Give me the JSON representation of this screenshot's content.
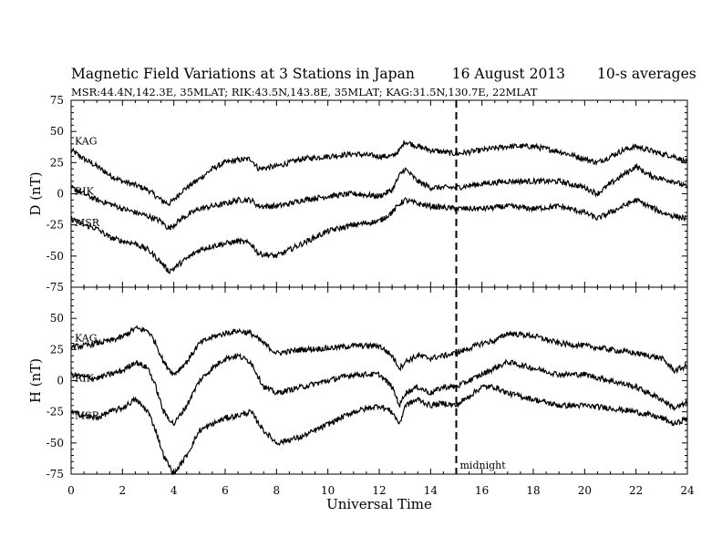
{
  "chart_data": {
    "type": "line",
    "title": "Magnetic Field Variations at 3 Stations in Japan",
    "date": "16  August  2013",
    "averaging": "10-s averages",
    "subtitle": "MSR:44.4N,142.3E, 35MLAT;  RIK:43.5N,143.8E, 35MLAT;  KAG:31.5N,130.7E, 22MLAT",
    "xlabel": "Universal Time",
    "xlim": [
      0,
      24
    ],
    "xticks": [
      "0",
      "2",
      "4",
      "6",
      "8",
      "10",
      "12",
      "14",
      "16",
      "18",
      "20",
      "22",
      "24"
    ],
    "annotation": {
      "label": "midnight",
      "x": 15
    },
    "panels": [
      {
        "ylabel": "D (nT)",
        "ylim": [
          -75,
          75
        ],
        "yticks": [
          "75",
          "50",
          "25",
          "0",
          "-25",
          "-50",
          "-75"
        ],
        "series": [
          {
            "name": "KAG",
            "x": [
              0,
              0.5,
              1,
              1.5,
              2,
              2.5,
              3,
              3.5,
              3.8,
              4,
              4.3,
              5,
              5.5,
              6,
              6.5,
              7,
              7.3,
              8,
              8.5,
              9,
              10,
              11,
              12,
              12.5,
              12.8,
              13,
              13.5,
              14,
              15,
              16,
              17,
              18,
              19,
              20,
              20.5,
              21,
              21.5,
              22,
              22.5,
              23,
              23.5,
              24
            ],
            "y": [
              35,
              28,
              22,
              15,
              10,
              7,
              3,
              -5,
              -8,
              -5,
              2,
              12,
              20,
              25,
              27,
              28,
              20,
              22,
              25,
              28,
              30,
              32,
              30,
              30,
              35,
              42,
              38,
              35,
              32,
              35,
              38,
              38,
              34,
              28,
              25,
              30,
              35,
              38,
              35,
              32,
              30,
              25
            ]
          },
          {
            "name": "RIK",
            "x": [
              0,
              0.5,
              1,
              1.5,
              2,
              2.5,
              3,
              3.5,
              3.8,
              4,
              4.3,
              5,
              5.5,
              6,
              6.5,
              7,
              7.3,
              8,
              8.5,
              9,
              10,
              11,
              12,
              12.5,
              12.8,
              13,
              13.5,
              14,
              15,
              16,
              17,
              18,
              19,
              20,
              20.5,
              21,
              21.5,
              22,
              22.5,
              23,
              23.5,
              24
            ],
            "y": [
              5,
              0,
              -5,
              -8,
              -12,
              -15,
              -18,
              -22,
              -28,
              -25,
              -20,
              -12,
              -10,
              -8,
              -5,
              -5,
              -10,
              -10,
              -8,
              -5,
              -2,
              0,
              -2,
              3,
              15,
              20,
              10,
              5,
              5,
              8,
              10,
              10,
              10,
              5,
              0,
              8,
              15,
              22,
              15,
              12,
              10,
              5
            ]
          },
          {
            "name": "MSR",
            "x": [
              0,
              0.5,
              1,
              1.5,
              2,
              2.5,
              3,
              3.5,
              3.8,
              4,
              4.3,
              5,
              5.5,
              6,
              6.5,
              7,
              7.3,
              8,
              8.5,
              9,
              10,
              11,
              12,
              12.5,
              12.8,
              13,
              13.5,
              14,
              15,
              16,
              17,
              18,
              19,
              20,
              20.5,
              21,
              21.5,
              22,
              22.5,
              23,
              23.5,
              24
            ],
            "y": [
              -20,
              -25,
              -28,
              -35,
              -38,
              -40,
              -45,
              -55,
              -62,
              -60,
              -55,
              -45,
              -42,
              -40,
              -38,
              -40,
              -48,
              -50,
              -45,
              -40,
              -30,
              -25,
              -22,
              -15,
              -8,
              -5,
              -8,
              -10,
              -12,
              -12,
              -10,
              -12,
              -10,
              -15,
              -20,
              -15,
              -10,
              -5,
              -10,
              -15,
              -18,
              -20
            ]
          }
        ]
      },
      {
        "ylabel": "H (nT)",
        "ylim": [
          -75,
          75
        ],
        "yticks": [
          "75",
          "50",
          "25",
          "0",
          "-25",
          "-50",
          "-75"
        ],
        "series": [
          {
            "name": "KAG",
            "x": [
              0,
              0.5,
              1,
              1.5,
              2,
              2.5,
              3,
              3.3,
              3.6,
              4,
              4.5,
              5,
              5.5,
              6,
              6.5,
              7,
              7.5,
              8,
              9,
              10,
              11,
              12,
              12.5,
              12.8,
              13,
              13.5,
              14,
              14.5,
              15,
              16,
              16.5,
              17,
              18,
              19,
              20,
              21,
              22,
              23,
              23.5,
              24
            ],
            "y": [
              27,
              28,
              30,
              32,
              35,
              42,
              40,
              30,
              15,
              5,
              15,
              30,
              35,
              38,
              40,
              38,
              30,
              22,
              25,
              26,
              28,
              28,
              20,
              10,
              15,
              20,
              18,
              20,
              22,
              30,
              32,
              38,
              36,
              30,
              28,
              25,
              22,
              18,
              8,
              12
            ]
          },
          {
            "name": "RIK",
            "x": [
              0,
              0.5,
              1,
              1.5,
              2,
              2.5,
              3,
              3.3,
              3.6,
              4,
              4.5,
              5,
              5.5,
              6,
              6.5,
              7,
              7.5,
              8,
              9,
              10,
              11,
              12,
              12.5,
              12.8,
              13,
              13.5,
              14,
              14.5,
              15,
              16,
              16.5,
              17,
              18,
              19,
              20,
              21,
              22,
              23,
              23.5,
              24
            ],
            "y": [
              5,
              3,
              2,
              5,
              8,
              15,
              10,
              -5,
              -25,
              -35,
              -20,
              0,
              10,
              18,
              20,
              15,
              -5,
              -10,
              -5,
              0,
              5,
              5,
              -5,
              -20,
              -10,
              -5,
              -10,
              -5,
              -5,
              5,
              10,
              15,
              10,
              5,
              5,
              0,
              -5,
              -15,
              -22,
              -18
            ]
          },
          {
            "name": "MSR",
            "x": [
              0,
              0.5,
              1,
              1.5,
              2,
              2.5,
              3,
              3.3,
              3.6,
              4,
              4.5,
              5,
              5.5,
              6,
              6.5,
              7,
              7.5,
              8,
              9,
              10,
              11,
              12,
              12.5,
              12.8,
              13,
              13.5,
              14,
              14.5,
              15,
              16,
              16.5,
              17,
              18,
              19,
              20,
              21,
              22,
              23,
              23.5,
              24
            ],
            "y": [
              -25,
              -28,
              -30,
              -25,
              -22,
              -15,
              -25,
              -40,
              -60,
              -75,
              -60,
              -40,
              -35,
              -30,
              -28,
              -25,
              -40,
              -50,
              -45,
              -35,
              -25,
              -20,
              -25,
              -35,
              -20,
              -15,
              -20,
              -18,
              -20,
              -5,
              -5,
              -10,
              -15,
              -20,
              -20,
              -22,
              -25,
              -30,
              -35,
              -30
            ]
          }
        ]
      }
    ]
  }
}
